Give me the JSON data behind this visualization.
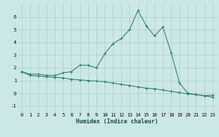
{
  "xlabel": "Humidex (Indice chaleur)",
  "x": [
    0,
    1,
    2,
    3,
    4,
    5,
    6,
    7,
    8,
    9,
    10,
    11,
    12,
    13,
    14,
    15,
    16,
    17,
    18,
    19,
    20,
    21,
    22,
    23
  ],
  "line1_y": [
    1.7,
    1.5,
    1.5,
    1.4,
    1.4,
    1.6,
    1.7,
    2.2,
    2.2,
    2.0,
    3.1,
    3.9,
    4.3,
    5.0,
    6.5,
    5.3,
    4.5,
    5.2,
    3.2,
    0.8,
    0.0,
    -0.1,
    -0.2,
    -0.15
  ],
  "line2_y": [
    1.7,
    1.4,
    1.35,
    1.3,
    1.25,
    1.2,
    1.1,
    1.05,
    1.0,
    0.95,
    0.9,
    0.8,
    0.7,
    0.6,
    0.5,
    0.4,
    0.35,
    0.25,
    0.15,
    0.05,
    -0.05,
    -0.1,
    -0.2,
    -0.3
  ],
  "line_color": "#2e7d6e",
  "bg_color": "#cce8e6",
  "grid_color": "#aad0ce",
  "ylim": [
    -1.5,
    7.0
  ],
  "xlim": [
    -0.5,
    23.5
  ],
  "yticks": [
    -1,
    0,
    1,
    2,
    3,
    4,
    5,
    6
  ],
  "xticks": [
    0,
    1,
    2,
    3,
    4,
    5,
    6,
    7,
    8,
    9,
    10,
    11,
    12,
    13,
    14,
    15,
    16,
    17,
    18,
    19,
    20,
    21,
    22,
    23
  ],
  "tick_fontsize": 5.0,
  "xlabel_fontsize": 6.0,
  "linewidth": 0.8,
  "markersize": 3.0
}
